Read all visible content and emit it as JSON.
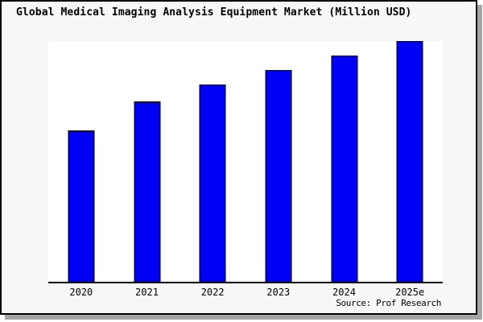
{
  "window": {
    "title": "Global Medical Imaging Analysis Equipment Market (Million USD)"
  },
  "source_note": "Source: Prof Research",
  "colors": {
    "panel_background": "#f7f7f7",
    "plot_background": "#ffffff",
    "panel_border": "#000000",
    "panel_shadow": "#a6a6a6",
    "bar_fill": "#0000f2",
    "bar_border": "#000000",
    "axis_line": "#000000",
    "text": "#000000"
  },
  "chart_data": {
    "type": "bar",
    "title": "Global Medical Imaging Analysis Equipment Market (Million USD)",
    "categories": [
      "2020",
      "2021",
      "2022",
      "2023",
      "2024",
      "2025e"
    ],
    "values": [
      63,
      75,
      82,
      88,
      94,
      100
    ],
    "xlabel": "",
    "ylabel": "",
    "ylim": [
      0,
      100
    ],
    "grid": false,
    "legend": false,
    "y_axis_shown": false,
    "note": "Chart shows no numeric y-axis or data labels; values are relative bar heights with the tallest bar (2025e) = 100."
  }
}
